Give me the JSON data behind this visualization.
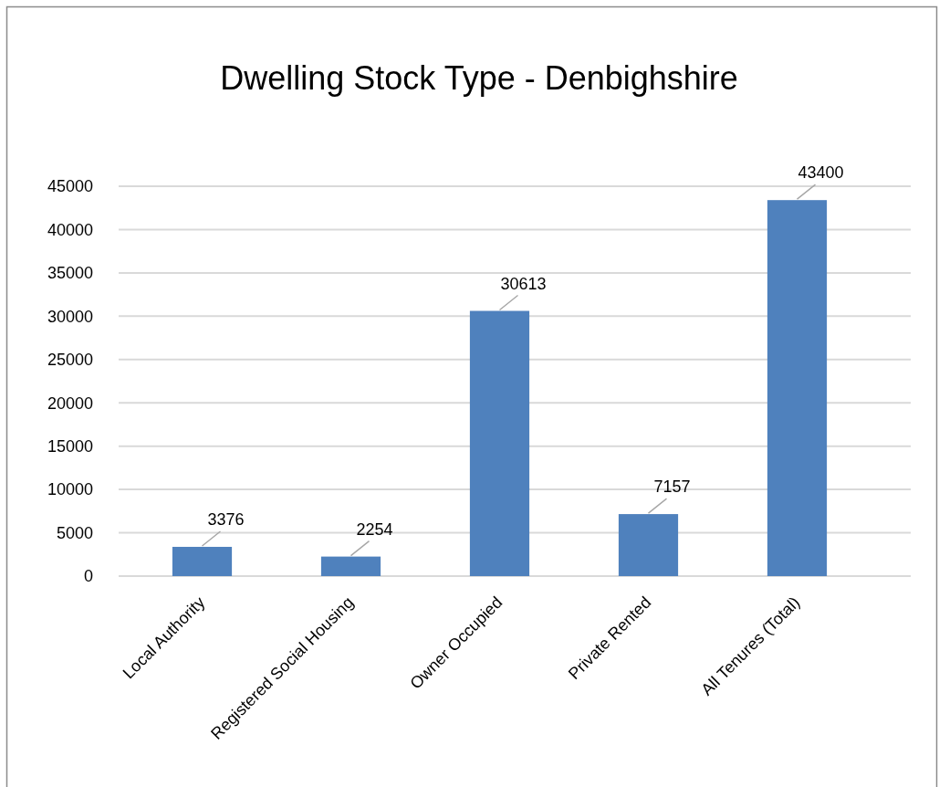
{
  "chart_data": {
    "type": "bar",
    "title": "Dwelling Stock Type - Denbighshire",
    "categories": [
      "Local Authority",
      "Registered Social Housing",
      "Owner Occupied",
      "Private Rented",
      "All Tenures (Total)"
    ],
    "values": [
      3376,
      2254,
      30613,
      7157,
      43400
    ],
    "color": "#4f81bd",
    "ylim": [
      0,
      45000
    ],
    "yticks": [
      0,
      5000,
      10000,
      15000,
      20000,
      25000,
      30000,
      35000,
      40000,
      45000
    ],
    "grid": "y",
    "data_labels": true
  }
}
